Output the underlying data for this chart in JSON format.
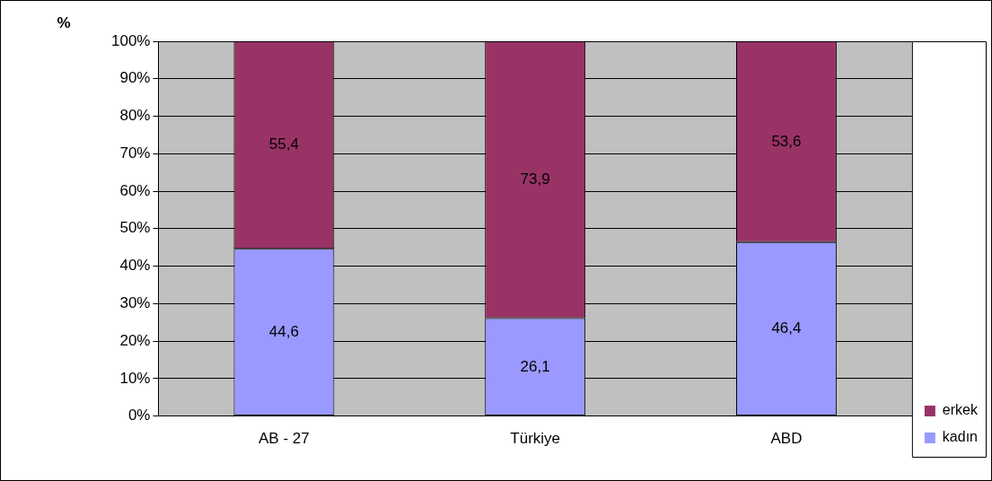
{
  "chart_data": {
    "type": "bar",
    "stacked": true,
    "ylabel": "%",
    "categories": [
      "AB - 27",
      "Türkiye",
      "ABD"
    ],
    "series": [
      {
        "name": "kadın",
        "color": "#9999ff",
        "values": [
          44.6,
          26.1,
          46.4
        ],
        "value_labels": [
          "44,6",
          "26,1",
          "46,4"
        ]
      },
      {
        "name": "erkek",
        "color": "#993366",
        "values": [
          55.4,
          73.9,
          53.6
        ],
        "value_labels": [
          "55,4",
          "73,9",
          "53,6"
        ]
      }
    ],
    "ylim": [
      0,
      100
    ],
    "yticks": [
      {
        "value": 0,
        "label": "0%"
      },
      {
        "value": 10,
        "label": "10%"
      },
      {
        "value": 20,
        "label": "20%"
      },
      {
        "value": 30,
        "label": "30%"
      },
      {
        "value": 40,
        "label": "40%"
      },
      {
        "value": 50,
        "label": "50%"
      },
      {
        "value": 60,
        "label": "60%"
      },
      {
        "value": 70,
        "label": "70%"
      },
      {
        "value": 80,
        "label": "80%"
      },
      {
        "value": 90,
        "label": "90%"
      },
      {
        "value": 100,
        "label": "100%"
      }
    ],
    "grid": "y",
    "legend": "bottom right"
  }
}
